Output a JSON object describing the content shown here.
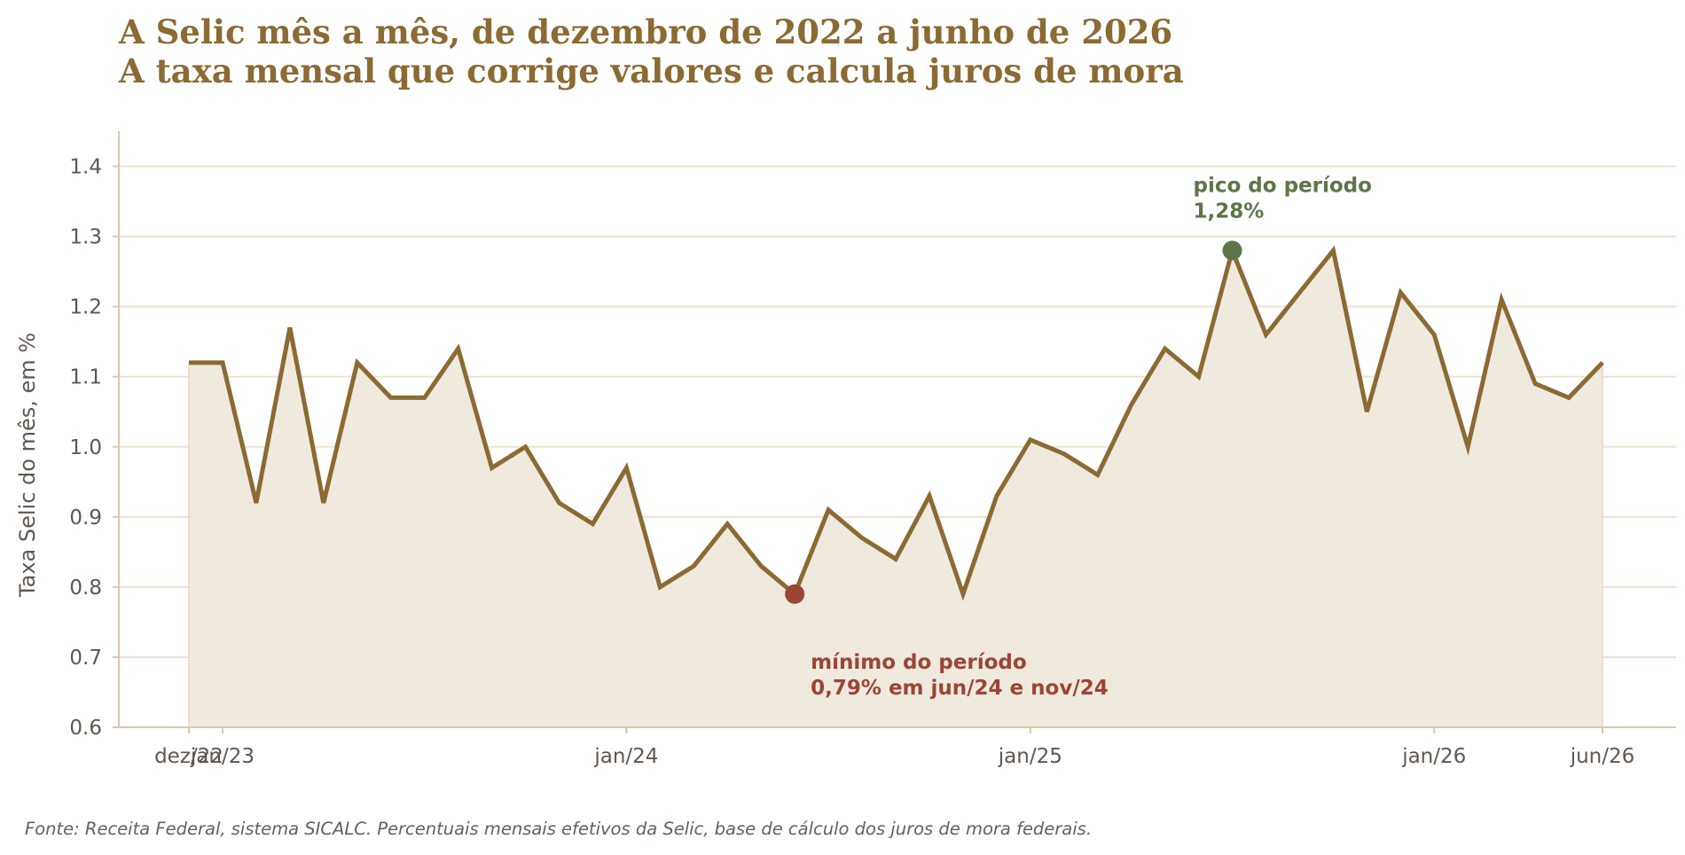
{
  "chart_data": {
    "type": "area",
    "title_lines": [
      "A Selic mês a mês, de dezembro de 2022 a junho de 2026",
      "A taxa mensal que corrige valores e calcula juros de mora"
    ],
    "ylabel": "Taxa Selic do mês, em %",
    "xlabel": "",
    "ylim": [
      0.6,
      1.45
    ],
    "yticks": [
      0.6,
      0.7,
      0.8,
      0.9,
      1.0,
      1.1,
      1.2,
      1.3,
      1.4
    ],
    "ytick_labels": [
      "0.6",
      "0.7",
      "0.8",
      "0.9",
      "1.0",
      "1.1",
      "1.2",
      "1.3",
      "1.4"
    ],
    "grid": "horizontal",
    "x_start": "2022-12",
    "xticks": [
      {
        "month": "2022-12",
        "label": "dez/22"
      },
      {
        "month": "2023-01",
        "label": "jan/23"
      },
      {
        "month": "2024-01",
        "label": "jan/24"
      },
      {
        "month": "2025-01",
        "label": "jan/25"
      },
      {
        "month": "2026-01",
        "label": "jan/26"
      },
      {
        "month": "2026-06",
        "label": "jun/26"
      }
    ],
    "x": [
      "2022-12",
      "2023-01",
      "2023-02",
      "2023-03",
      "2023-04",
      "2023-05",
      "2023-06",
      "2023-07",
      "2023-08",
      "2023-09",
      "2023-10",
      "2023-11",
      "2023-12",
      "2024-01",
      "2024-02",
      "2024-03",
      "2024-04",
      "2024-05",
      "2024-06",
      "2024-07",
      "2024-08",
      "2024-09",
      "2024-10",
      "2024-11",
      "2024-12",
      "2025-01",
      "2025-02",
      "2025-03",
      "2025-04",
      "2025-05",
      "2025-06",
      "2025-07",
      "2025-08",
      "2025-09",
      "2025-10",
      "2025-11",
      "2025-12",
      "2026-01",
      "2026-02",
      "2026-03",
      "2026-04",
      "2026-05",
      "2026-06"
    ],
    "values": [
      1.12,
      1.12,
      0.92,
      1.17,
      0.92,
      1.12,
      1.07,
      1.07,
      1.14,
      0.97,
      1.0,
      0.92,
      0.89,
      0.97,
      0.8,
      0.83,
      0.89,
      0.83,
      0.79,
      0.91,
      0.87,
      0.84,
      0.93,
      0.79,
      0.93,
      1.01,
      0.99,
      0.96,
      1.06,
      1.14,
      1.1,
      1.28,
      1.16,
      1.22,
      1.28,
      1.05,
      1.22,
      1.16,
      1.0,
      1.21,
      1.09,
      1.07,
      1.12
    ],
    "annotations": [
      {
        "type": "max",
        "month": "2025-07",
        "value": 1.28,
        "lines": [
          "pico do período",
          "1,28%"
        ],
        "color": "#5e7548"
      },
      {
        "type": "min",
        "month": "2024-06",
        "value": 0.79,
        "lines": [
          "mínimo do período",
          "0,79% em jun/24 e nov/24"
        ],
        "color": "#9b4535"
      }
    ],
    "source": "Fonte: Receita Federal, sistema SICALC. Percentuais mensais efetivos da Selic, base de cálculo dos juros de mora federais.",
    "colors": {
      "line": "#8b6a33",
      "fill": "#f0e9de",
      "grid": "#ede3d2",
      "axis": "#d8c8ad",
      "title": "#8b6a33",
      "tick_text": "#5f5750",
      "source_text": "#666058"
    }
  }
}
